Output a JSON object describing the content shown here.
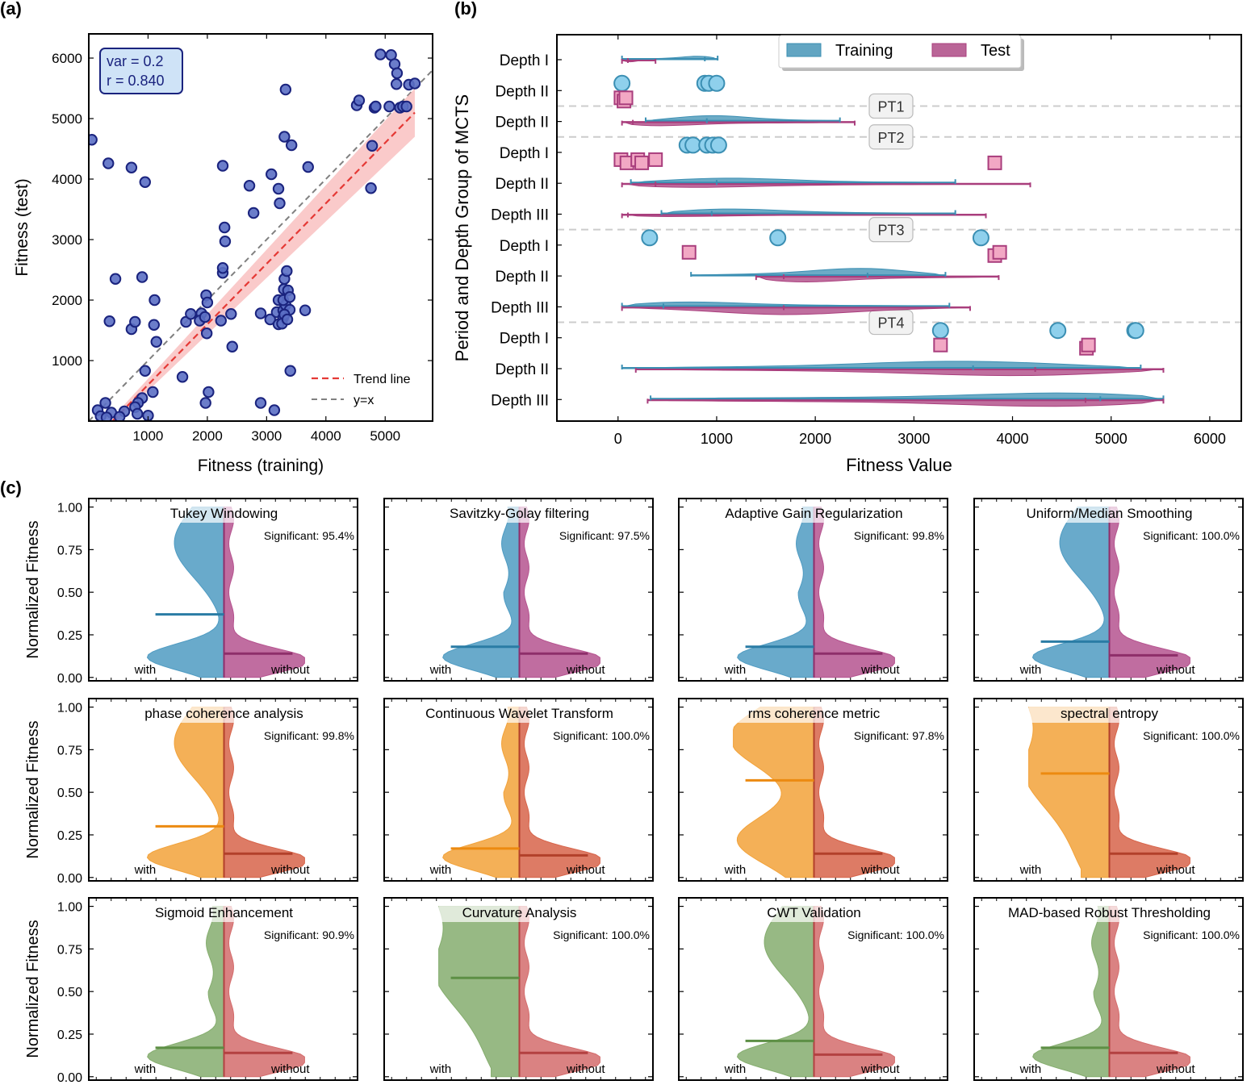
{
  "panel_labels": {
    "a": "(a)",
    "b": "(b)",
    "c": "(c)"
  },
  "chart_data": [
    {
      "id": "a",
      "type": "scatter",
      "xlabel": "Fitness (training)",
      "ylabel": "Fitness (test)",
      "xlim": [
        0,
        5800
      ],
      "ylim": [
        0,
        6400
      ],
      "xticks": [
        1000,
        2000,
        3000,
        4000,
        5000
      ],
      "yticks": [
        1000,
        2000,
        3000,
        4000,
        5000,
        6000
      ],
      "stats_box": [
        "var = 0.2",
        "r = 0.840"
      ],
      "legend": [
        "Trend line",
        "y=x"
      ],
      "trend": {
        "x0": 400,
        "y0": 0,
        "x1": 5500,
        "y1": 5100,
        "band_lo": [
          -60,
          4700
        ],
        "band_hi": [
          60,
          5500
        ]
      },
      "colors": {
        "point_fill": "#5b6fc4",
        "point_edge": "#1a237e",
        "trend": "#e53935",
        "band": "#f8b4b4",
        "identity": "#808080",
        "box_fill": "#cfe3f7",
        "box_edge": "#1a237e",
        "box_text": "#1a237e"
      },
      "points": [
        [
          50,
          4650
        ],
        [
          330,
          4260
        ],
        [
          720,
          4190
        ],
        [
          950,
          3950
        ],
        [
          280,
          300
        ],
        [
          380,
          140
        ],
        [
          150,
          180
        ],
        [
          200,
          80
        ],
        [
          450,
          2350
        ],
        [
          350,
          1650
        ],
        [
          720,
          1520
        ],
        [
          900,
          2380
        ],
        [
          780,
          1640
        ],
        [
          1100,
          1590
        ],
        [
          1110,
          2000
        ],
        [
          950,
          830
        ],
        [
          900,
          380
        ],
        [
          830,
          300
        ],
        [
          780,
          230
        ],
        [
          1080,
          480
        ],
        [
          1140,
          1310
        ],
        [
          600,
          160
        ],
        [
          520,
          70
        ],
        [
          820,
          120
        ],
        [
          1000,
          90
        ],
        [
          300,
          60
        ],
        [
          1580,
          730
        ],
        [
          1640,
          1640
        ],
        [
          1720,
          1770
        ],
        [
          1900,
          1780
        ],
        [
          1870,
          1660
        ],
        [
          1980,
          2080
        ],
        [
          2000,
          1960
        ],
        [
          1960,
          1720
        ],
        [
          1990,
          1450
        ],
        [
          2020,
          480
        ],
        [
          1970,
          300
        ],
        [
          2230,
          1660
        ],
        [
          2260,
          2450
        ],
        [
          2260,
          2530
        ],
        [
          2300,
          2970
        ],
        [
          2290,
          3200
        ],
        [
          2260,
          4220
        ],
        [
          2400,
          1770
        ],
        [
          2420,
          1230
        ],
        [
          2710,
          3890
        ],
        [
          2780,
          3440
        ],
        [
          2900,
          1780
        ],
        [
          2900,
          300
        ],
        [
          3060,
          1680
        ],
        [
          3080,
          4080
        ],
        [
          3130,
          180
        ],
        [
          3200,
          3840
        ],
        [
          3220,
          3600
        ],
        [
          3200,
          2000
        ],
        [
          3170,
          1800
        ],
        [
          3280,
          1710
        ],
        [
          3200,
          1600
        ],
        [
          3260,
          1610
        ],
        [
          3280,
          1830
        ],
        [
          3320,
          1920
        ],
        [
          3280,
          2000
        ],
        [
          3290,
          2180
        ],
        [
          3300,
          2350
        ],
        [
          3340,
          2480
        ],
        [
          3360,
          2160
        ],
        [
          3390,
          2050
        ],
        [
          3390,
          1840
        ],
        [
          3300,
          1760
        ],
        [
          3350,
          1680
        ],
        [
          3300,
          4700
        ],
        [
          3320,
          5480
        ],
        [
          3420,
          4560
        ],
        [
          3400,
          830
        ],
        [
          3650,
          1830
        ],
        [
          3700,
          4200
        ],
        [
          4520,
          5220
        ],
        [
          4560,
          5300
        ],
        [
          4780,
          4550
        ],
        [
          4760,
          3850
        ],
        [
          4820,
          5180
        ],
        [
          4840,
          5200
        ],
        [
          4920,
          6060
        ],
        [
          5070,
          5200
        ],
        [
          5100,
          6050
        ],
        [
          5160,
          5900
        ],
        [
          5190,
          5570
        ],
        [
          5200,
          5750
        ],
        [
          5250,
          5180
        ],
        [
          5300,
          5200
        ],
        [
          5360,
          5200
        ],
        [
          5400,
          5560
        ],
        [
          5500,
          5580
        ]
      ]
    },
    {
      "id": "b",
      "type": "violin",
      "xlabel": "Fitness Value",
      "ylabel": "Period and Depth Group of MCTS",
      "xlim": [
        -620,
        6320
      ],
      "xticks": [
        0,
        1000,
        2000,
        3000,
        4000,
        5000,
        6000
      ],
      "legend": [
        {
          "name": "Training",
          "color": "#3b8fb3"
        },
        {
          "name": "Test",
          "color": "#a93e7d"
        }
      ],
      "rows": [
        {
          "label": "Depth I",
          "kind": "violin",
          "train": {
            "min": 40,
            "max": 1010,
            "med": 880,
            "w": 0.14
          },
          "test": {
            "min": 40,
            "max": 380,
            "med": 100,
            "w": 0.08
          }
        },
        {
          "label": "Depth II",
          "kind": "markers",
          "train": [
            40,
            880,
            920,
            1000
          ],
          "test": [
            30,
            60,
            80
          ]
        },
        {
          "label": "Depth II",
          "kind": "violin",
          "train": {
            "min": 280,
            "max": 2250,
            "med": 900,
            "w": 0.2
          },
          "test": {
            "min": 40,
            "max": 2400,
            "med": 150,
            "w": 0.2
          }
        },
        {
          "label": "Depth I",
          "kind": "markers",
          "train": [
            700,
            760,
            900,
            960,
            1020
          ],
          "test": [
            30,
            90,
            200,
            240,
            380,
            3820
          ]
        },
        {
          "label": "Depth II",
          "kind": "violin",
          "train": {
            "min": 130,
            "max": 3420,
            "med": 1000,
            "w": 0.18
          },
          "test": {
            "min": 40,
            "max": 4180,
            "med": 380,
            "w": 0.18
          }
        },
        {
          "label": "Depth III",
          "kind": "violin",
          "train": {
            "min": 440,
            "max": 3420,
            "med": 950,
            "w": 0.2
          },
          "test": {
            "min": 40,
            "max": 3730,
            "med": 100,
            "w": 0.12
          }
        },
        {
          "label": "Depth I",
          "kind": "markers",
          "train": [
            320,
            1620,
            3680
          ],
          "test": [
            720,
            3820,
            3870
          ]
        },
        {
          "label": "Depth II",
          "kind": "violin",
          "train": {
            "min": 740,
            "max": 3320,
            "med": 2530,
            "w": 0.26
          },
          "test": {
            "min": 1400,
            "max": 3860,
            "med": 1680,
            "w": 0.25
          }
        },
        {
          "label": "Depth III",
          "kind": "violin",
          "train": {
            "min": 40,
            "max": 3360,
            "med": 460,
            "w": 0.2
          },
          "test": {
            "min": 40,
            "max": 3570,
            "med": 1680,
            "w": 0.25
          }
        },
        {
          "label": "Depth I",
          "kind": "markers",
          "train": [
            3270,
            4460,
            5240,
            5250
          ],
          "test": [
            3270,
            4750,
            4770
          ]
        },
        {
          "label": "Depth II",
          "kind": "violin",
          "train": {
            "min": 40,
            "max": 5300,
            "med": 3600,
            "w": 0.25
          },
          "test": {
            "min": 180,
            "max": 5530,
            "med": 4230,
            "w": 0.25
          }
        },
        {
          "label": "Depth III",
          "kind": "violin",
          "train": {
            "min": 330,
            "max": 5530,
            "med": 4890,
            "w": 0.27
          },
          "test": {
            "min": 300,
            "max": 5530,
            "med": 4740,
            "w": 0.27
          }
        }
      ],
      "separators": [
        {
          "after_row": 1,
          "label": "PT1"
        },
        {
          "after_row": 2,
          "label": "PT2"
        },
        {
          "after_row": 5,
          "label": "PT3"
        },
        {
          "after_row": 8,
          "label": "PT4"
        }
      ]
    },
    {
      "id": "c",
      "type": "split-violin",
      "ylabel": "Normalized Fitness",
      "ylim": [
        -0.02,
        1.05
      ],
      "yticks": [
        "0.00",
        "0.25",
        "0.50",
        "0.75",
        "1.00"
      ],
      "with_label": "with",
      "without_label": "without",
      "color_rows": [
        {
          "left": "#4f9bc2",
          "left_median": "#2a7ca5",
          "right": "#b5538f",
          "right_median": "#8e2e6a"
        },
        {
          "left": "#f2a23a",
          "left_median": "#ec8a10",
          "right": "#d7644a",
          "right_median": "#b2402a"
        },
        {
          "left": "#85ad6e",
          "left_median": "#5d8f45",
          "right": "#d46c6c",
          "right_median": "#b34141"
        }
      ],
      "panels": [
        {
          "title": "Tukey Windowing",
          "sig": "Significant: 95.4%",
          "median": 0.37,
          "right_median": 0.14,
          "shape": "wide-top"
        },
        {
          "title": "Savitzky-Golay filtering",
          "sig": "Significant: 97.5%",
          "median": 0.18,
          "right_median": 0.14,
          "shape": "thin-top"
        },
        {
          "title": "Adaptive Gain Regularization",
          "sig": "Significant: 99.8%",
          "median": 0.18,
          "right_median": 0.14,
          "shape": "thin-top"
        },
        {
          "title": "Uniform/Median Smoothing",
          "sig": "Significant: 100.0%",
          "median": 0.21,
          "right_median": 0.13,
          "shape": "wide-top"
        },
        {
          "title": "phase coherence analysis",
          "sig": "Significant: 99.8%",
          "median": 0.3,
          "right_median": 0.14,
          "shape": "wide-top"
        },
        {
          "title": "Continuous Wavelet Transform",
          "sig": "Significant: 100.0%",
          "median": 0.17,
          "right_median": 0.13,
          "shape": "thin-top"
        },
        {
          "title": "rms coherence metric",
          "sig": "Significant: 97.8%",
          "median": 0.57,
          "right_median": 0.14,
          "shape": "full"
        },
        {
          "title": "spectral entropy",
          "sig": "Significant: 100.0%",
          "median": 0.61,
          "right_median": 0.14,
          "shape": "full-top"
        },
        {
          "title": "Sigmoid Enhancement",
          "sig": "Significant: 90.9%",
          "median": 0.17,
          "right_median": 0.14,
          "shape": "thin-top"
        },
        {
          "title": "Curvature Analysis",
          "sig": "Significant: 100.0%",
          "median": 0.58,
          "right_median": 0.14,
          "shape": "full-top"
        },
        {
          "title": "CWT Validation",
          "sig": "Significant: 100.0%",
          "median": 0.21,
          "right_median": 0.13,
          "shape": "wide-top"
        },
        {
          "title": "MAD-based Robust Thresholding",
          "sig": "Significant: 100.0%",
          "median": 0.17,
          "right_median": 0.14,
          "shape": "thin-top"
        }
      ]
    }
  ]
}
